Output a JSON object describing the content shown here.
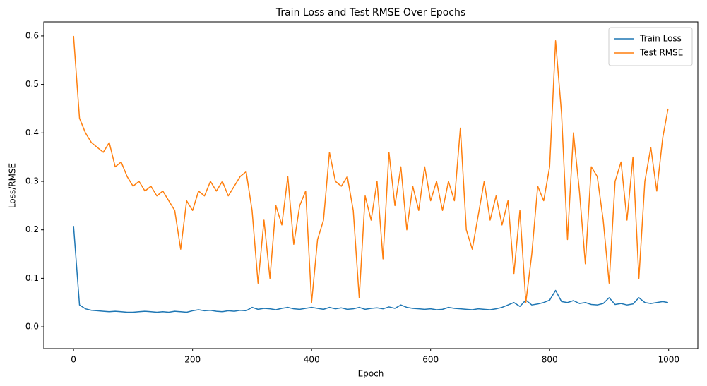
{
  "chart_data": {
    "type": "line",
    "title": "Train Loss and Test RMSE Over Epochs",
    "x_label": "Epoch",
    "y_label": "Loss/RMSE",
    "x": [
      0,
      10,
      20,
      30,
      40,
      50,
      60,
      70,
      80,
      90,
      100,
      110,
      120,
      130,
      140,
      150,
      160,
      170,
      180,
      190,
      200,
      210,
      220,
      230,
      240,
      250,
      260,
      270,
      280,
      290,
      300,
      310,
      320,
      330,
      340,
      350,
      360,
      370,
      380,
      390,
      400,
      410,
      420,
      430,
      440,
      450,
      460,
      470,
      480,
      490,
      500,
      510,
      520,
      530,
      540,
      550,
      560,
      570,
      580,
      590,
      600,
      610,
      620,
      630,
      640,
      650,
      660,
      670,
      680,
      690,
      700,
      710,
      720,
      730,
      740,
      750,
      760,
      770,
      780,
      790,
      800,
      810,
      820,
      830,
      840,
      850,
      860,
      870,
      880,
      890,
      900,
      910,
      920,
      930,
      940,
      950,
      960,
      970,
      980,
      990,
      999
    ],
    "series": [
      {
        "name": "Train Loss",
        "color": "#1f77b4",
        "values": [
          0.208,
          0.045,
          0.037,
          0.034,
          0.033,
          0.032,
          0.031,
          0.032,
          0.031,
          0.03,
          0.03,
          0.031,
          0.032,
          0.031,
          0.03,
          0.031,
          0.03,
          0.032,
          0.031,
          0.03,
          0.033,
          0.035,
          0.033,
          0.034,
          0.032,
          0.031,
          0.033,
          0.032,
          0.034,
          0.033,
          0.04,
          0.036,
          0.038,
          0.037,
          0.035,
          0.038,
          0.04,
          0.037,
          0.036,
          0.038,
          0.04,
          0.038,
          0.036,
          0.04,
          0.037,
          0.039,
          0.036,
          0.037,
          0.04,
          0.036,
          0.038,
          0.039,
          0.037,
          0.041,
          0.038,
          0.045,
          0.04,
          0.038,
          0.037,
          0.036,
          0.037,
          0.035,
          0.036,
          0.04,
          0.038,
          0.037,
          0.036,
          0.035,
          0.037,
          0.036,
          0.035,
          0.037,
          0.04,
          0.045,
          0.05,
          0.042,
          0.055,
          0.045,
          0.047,
          0.05,
          0.055,
          0.075,
          0.052,
          0.05,
          0.054,
          0.048,
          0.05,
          0.046,
          0.045,
          0.048,
          0.06,
          0.046,
          0.048,
          0.045,
          0.047,
          0.06,
          0.05,
          0.048,
          0.05,
          0.052,
          0.05
        ]
      },
      {
        "name": "Test RMSE",
        "color": "#ff7f0e",
        "values": [
          0.6,
          0.43,
          0.4,
          0.38,
          0.37,
          0.36,
          0.38,
          0.33,
          0.34,
          0.31,
          0.29,
          0.3,
          0.28,
          0.29,
          0.27,
          0.28,
          0.26,
          0.24,
          0.16,
          0.26,
          0.24,
          0.28,
          0.27,
          0.3,
          0.28,
          0.3,
          0.27,
          0.29,
          0.31,
          0.32,
          0.24,
          0.09,
          0.22,
          0.1,
          0.25,
          0.21,
          0.31,
          0.17,
          0.25,
          0.28,
          0.05,
          0.18,
          0.22,
          0.36,
          0.3,
          0.29,
          0.31,
          0.24,
          0.06,
          0.27,
          0.22,
          0.3,
          0.14,
          0.36,
          0.25,
          0.33,
          0.2,
          0.29,
          0.24,
          0.33,
          0.26,
          0.3,
          0.24,
          0.3,
          0.26,
          0.41,
          0.2,
          0.16,
          0.23,
          0.3,
          0.22,
          0.27,
          0.21,
          0.26,
          0.11,
          0.24,
          0.05,
          0.15,
          0.29,
          0.26,
          0.33,
          0.59,
          0.44,
          0.18,
          0.4,
          0.28,
          0.13,
          0.33,
          0.31,
          0.22,
          0.09,
          0.3,
          0.34,
          0.22,
          0.35,
          0.1,
          0.3,
          0.37,
          0.28,
          0.39,
          0.45
        ]
      }
    ],
    "xlim": [
      -50,
      1049
    ],
    "xticks": [
      0,
      200,
      400,
      600,
      800,
      1000
    ],
    "ylim": [
      -0.045,
      0.629
    ],
    "yticks": [
      {
        "value": 0,
        "label": "0.0"
      },
      0.1,
      0.2,
      0.3,
      0.4,
      0.5,
      0.6
    ],
    "legend": "upper right"
  }
}
